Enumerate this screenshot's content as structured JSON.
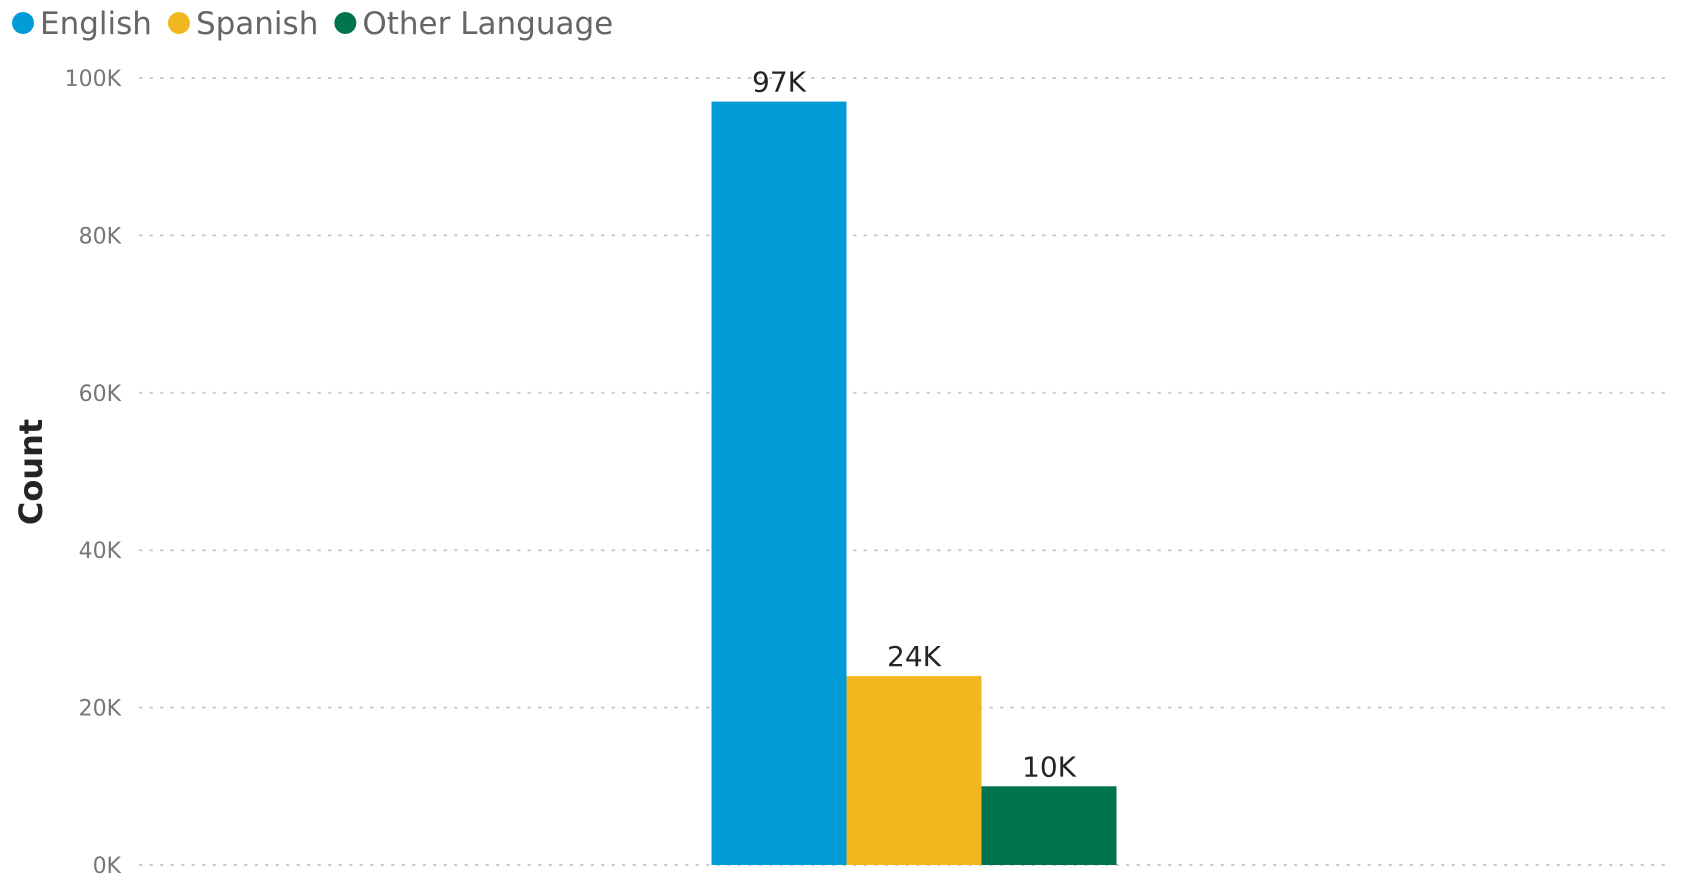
{
  "chart_data": {
    "type": "bar",
    "title": "",
    "xlabel": "",
    "ylabel": "Count",
    "ylim": [
      0,
      100000
    ],
    "yticks": [
      {
        "value": 0,
        "label": "0K"
      },
      {
        "value": 20000,
        "label": "20K"
      },
      {
        "value": 40000,
        "label": "40K"
      },
      {
        "value": 60000,
        "label": "60K"
      },
      {
        "value": 80000,
        "label": "80K"
      },
      {
        "value": 100000,
        "label": "100K"
      }
    ],
    "grid": true,
    "legend_position": "top-left",
    "categories": [
      ""
    ],
    "series": [
      {
        "name": "English",
        "color": "#019CD8",
        "values": [
          97000
        ],
        "labels": [
          "97K"
        ]
      },
      {
        "name": "Spanish",
        "color": "#F0B81E",
        "values": [
          24000
        ],
        "labels": [
          "24K"
        ]
      },
      {
        "name": "Other Language",
        "color": "#00734F",
        "values": [
          10000
        ],
        "labels": [
          "10K"
        ]
      }
    ]
  }
}
